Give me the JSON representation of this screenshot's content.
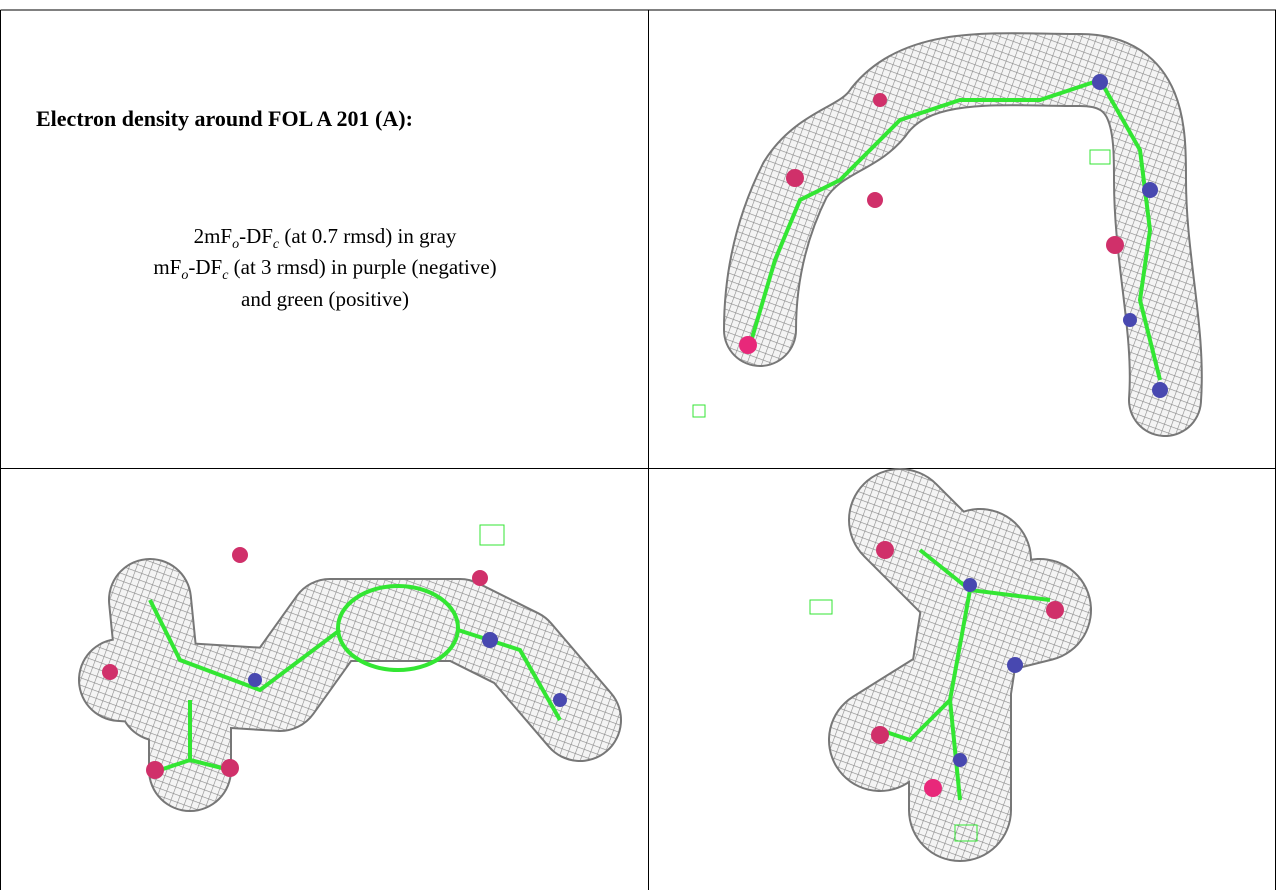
{
  "caption": {
    "title": "Electron density around FOL A 201 (A):",
    "lines": [
      [
        "2mF",
        "o",
        "-DF",
        "c",
        " (at 0.7 rmsd) in gray"
      ],
      [
        "mF",
        "o",
        "-DF",
        "c",
        " (at 3 rmsd) in purple (negative)"
      ],
      [
        "and green (positive)"
      ]
    ]
  }
}
